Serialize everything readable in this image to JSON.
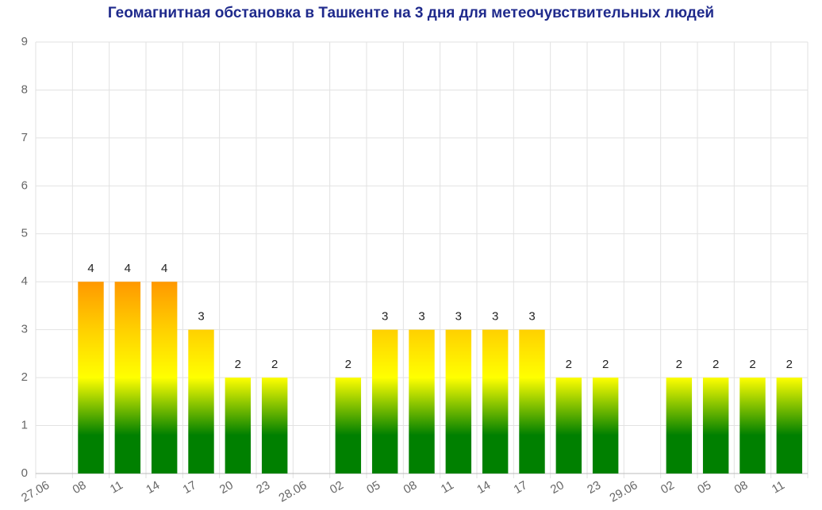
{
  "chart_data": {
    "type": "bar",
    "title": "Геомагнитная обстановка в Ташкенте на 3 дня для метеочувствительных людей",
    "categories": [
      "27.06",
      "08",
      "11",
      "14",
      "17",
      "20",
      "23",
      "28.06",
      "02",
      "05",
      "08",
      "11",
      "14",
      "17",
      "20",
      "23",
      "29.06",
      "02",
      "05",
      "08",
      "11"
    ],
    "values": [
      null,
      4,
      4,
      4,
      3,
      2,
      2,
      null,
      2,
      3,
      3,
      3,
      3,
      3,
      2,
      2,
      null,
      2,
      2,
      2,
      2
    ],
    "ylim": [
      0,
      9
    ],
    "yticks": [
      0,
      1,
      2,
      3,
      4,
      5,
      6,
      7,
      8,
      9
    ],
    "grid": true
  }
}
